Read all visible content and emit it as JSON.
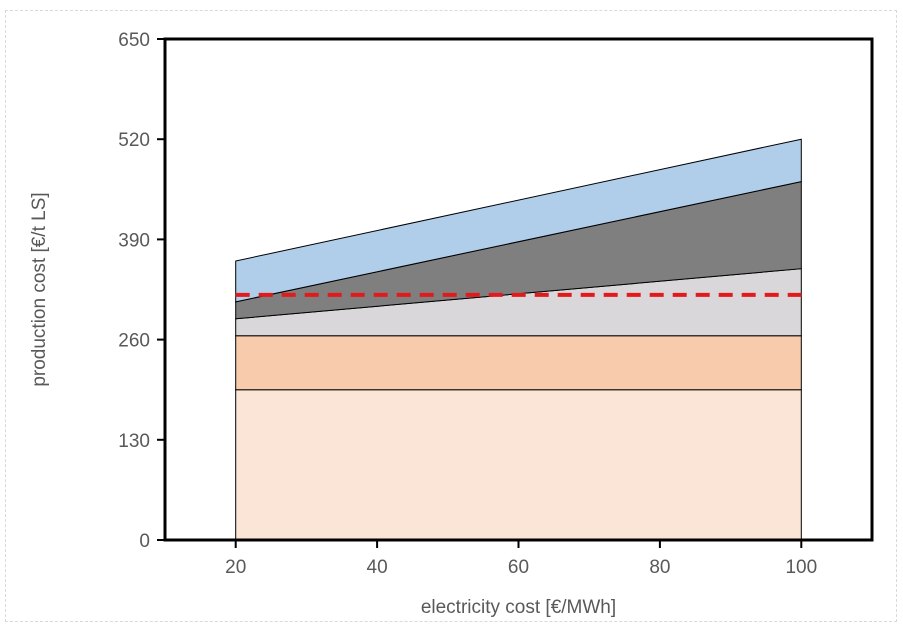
{
  "chart_data": {
    "type": "area",
    "xlabel": "electricity cost [€/MWh]",
    "ylabel": "production cost [€/t LS]",
    "xlim": [
      10,
      110
    ],
    "ylim": [
      0,
      650
    ],
    "x_ticks": [
      20,
      40,
      60,
      80,
      100
    ],
    "y_ticks": [
      0,
      130,
      260,
      390,
      520,
      650
    ],
    "grid": false,
    "legend": "none",
    "x": [
      20,
      100
    ],
    "series": [
      {
        "values": [
          195,
          195
        ],
        "color": "#fbe5d6"
      },
      {
        "values": [
          70,
          70
        ],
        "color": "#f8cbad"
      },
      {
        "values": [
          22,
          87
        ],
        "color": "#d9d7d9"
      },
      {
        "values": [
          22,
          113
        ],
        "color": "#7f7f7f"
      },
      {
        "values": [
          53,
          55
        ],
        "color": "#b0cde9"
      }
    ],
    "reference_line": {
      "y": 318,
      "style": "dashed",
      "color": "#e31a1c"
    }
  }
}
